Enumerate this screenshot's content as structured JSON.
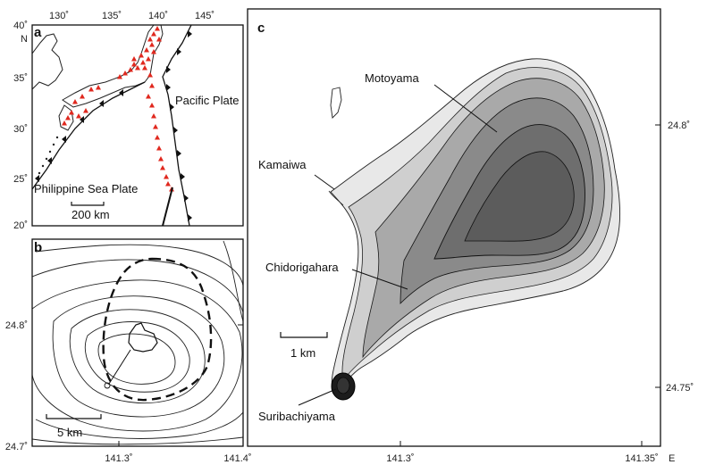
{
  "panel_a": {
    "letter": "a",
    "top_ticks": [
      "130˚",
      "135˚",
      "140˚",
      "145˚"
    ],
    "left_ticks": [
      "40˚",
      "35˚",
      "30˚",
      "25˚",
      "20˚"
    ],
    "north_label": "N",
    "pacific_plate": "Pacific Plate",
    "philippine_plate": "Philippine Sea Plate",
    "scale_label": "200 km"
  },
  "panel_b": {
    "letter": "b",
    "left_ticks": [
      "24.8˚",
      "24.7˚"
    ],
    "bottom_ticks": [
      "141.3˚",
      "141.4˚"
    ],
    "scale_label": "5 km"
  },
  "panel_c": {
    "letter": "c",
    "right_ticks": [
      "24.8˚",
      "24.75˚"
    ],
    "bottom_ticks": [
      "141.3˚",
      "141.35˚"
    ],
    "east_label": "E",
    "scale_label": "1 km",
    "places": [
      "Motoyama",
      "Kamaiwa",
      "Chidorigahara",
      "Suribachiyama"
    ]
  },
  "colors": {
    "volcano": "#e0281e",
    "frame": "#111111",
    "island_dark": "#3c3c3c",
    "island_mid": "#6e6e6e",
    "island_light": "#b5b5b5"
  }
}
